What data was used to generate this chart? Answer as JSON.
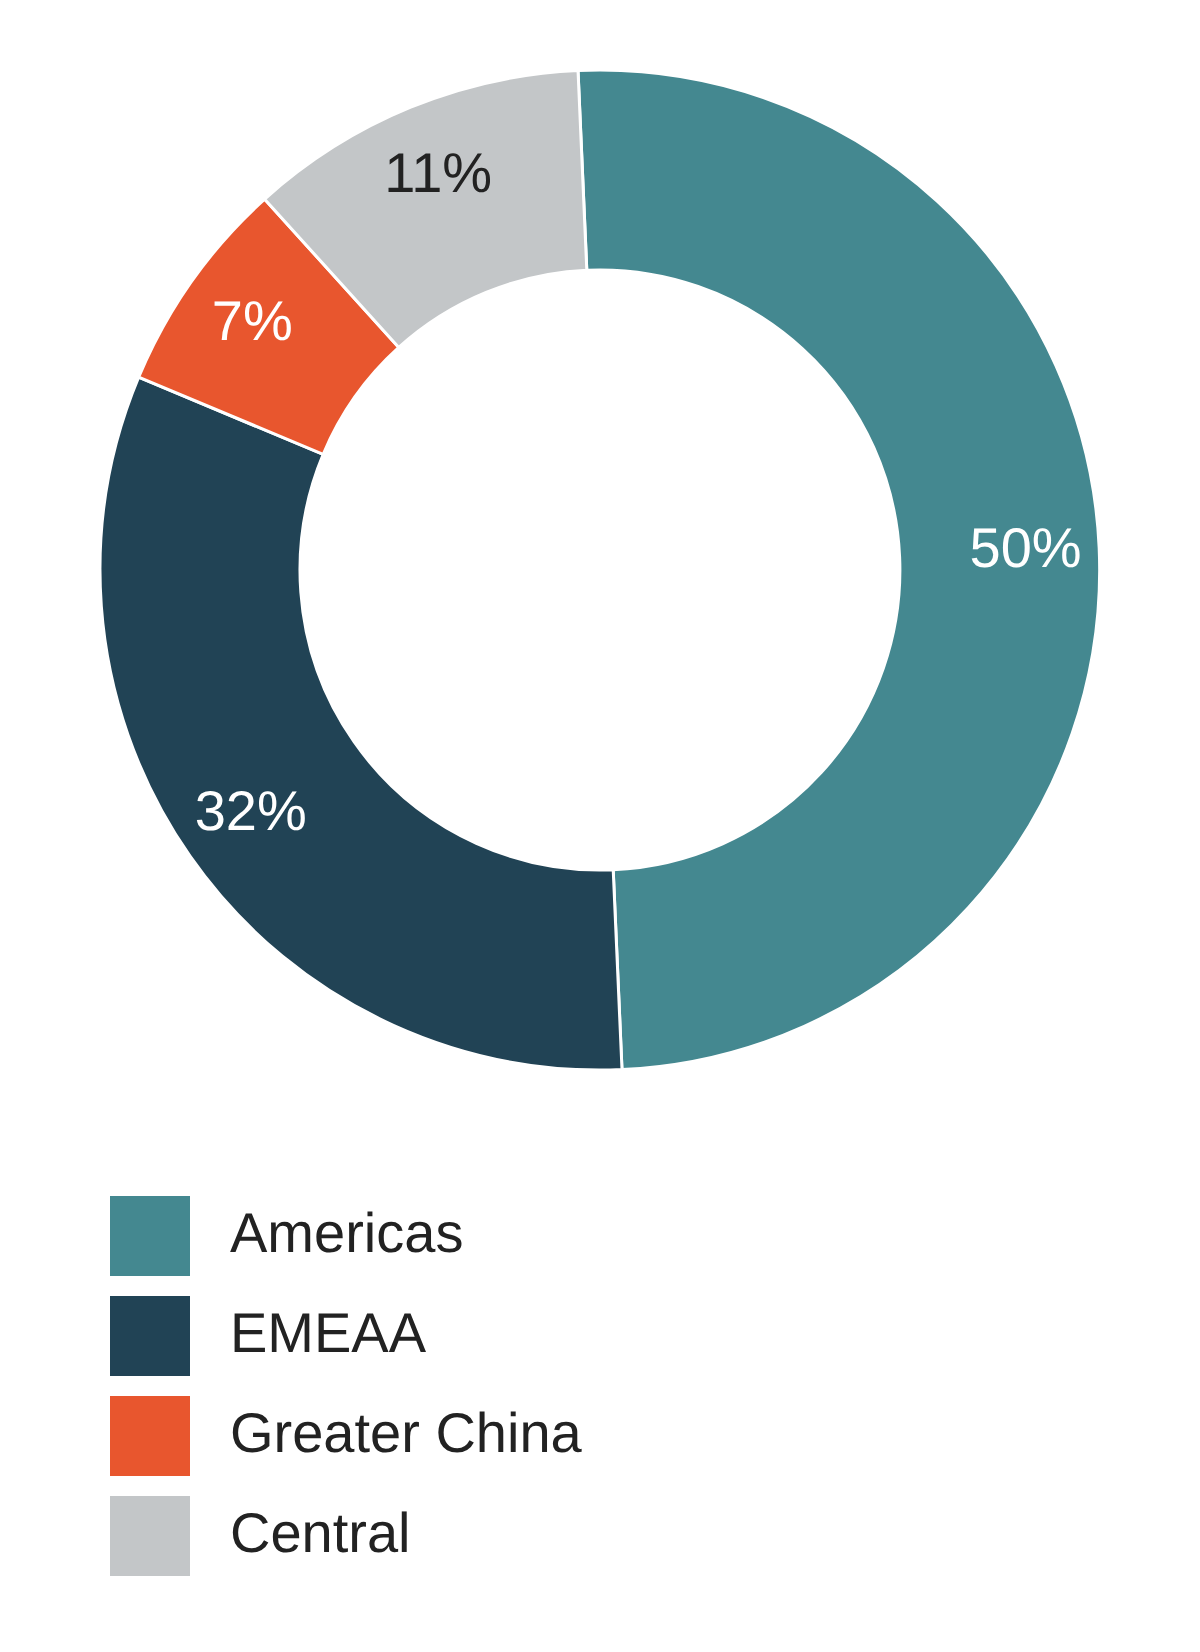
{
  "chart_data": {
    "type": "donut",
    "categories": [
      "Americas",
      "EMEAA",
      "Greater China",
      "Central"
    ],
    "values": [
      50,
      32,
      7,
      11
    ],
    "colors": [
      "#448890",
      "#214355",
      "#e8562e",
      "#c3c6c8"
    ],
    "value_labels": [
      "50%",
      "32%",
      "7%",
      "11%"
    ],
    "legend": "bottom left"
  }
}
